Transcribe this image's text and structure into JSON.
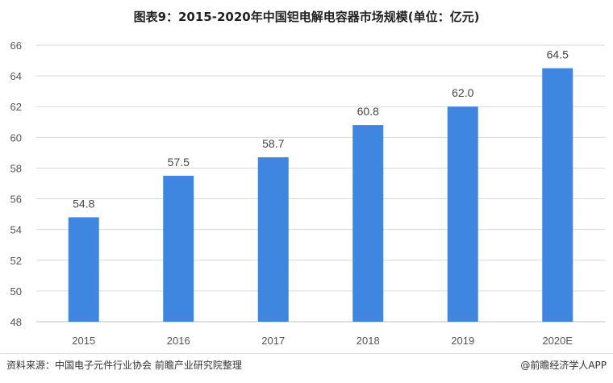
{
  "title": "图表9：2015-2020年中国钽电解电容器市场规模(单位：亿元)",
  "footer": {
    "source": "资料来源：中国电子元件行业协会 前瞻产业研究院整理",
    "brand": "@前瞻经济学人APP"
  },
  "colors": {
    "bar": "#3f86e0",
    "grid": "#d9d9d9"
  },
  "chart_data": {
    "type": "bar",
    "categories": [
      "2015",
      "2016",
      "2017",
      "2018",
      "2019",
      "2020E"
    ],
    "values": [
      54.8,
      57.5,
      58.7,
      60.8,
      62.0,
      64.5
    ],
    "value_labels": [
      "54.8",
      "57.5",
      "58.7",
      "60.8",
      "62.0",
      "64.5"
    ],
    "ylim": [
      48,
      66
    ],
    "yticks": [
      48,
      50,
      52,
      54,
      56,
      58,
      60,
      62,
      64,
      66
    ],
    "grid": "horizontal"
  }
}
